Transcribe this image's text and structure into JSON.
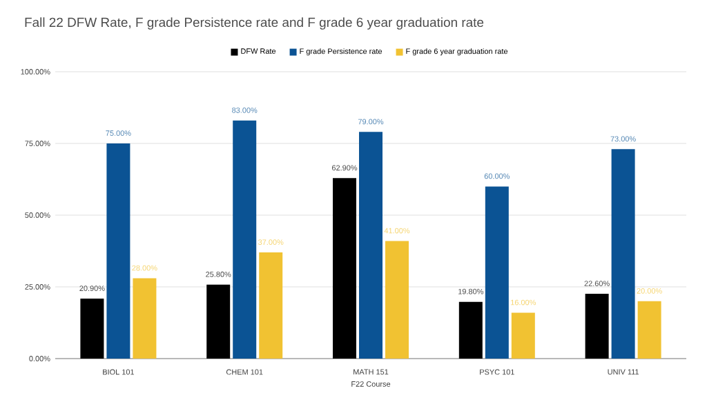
{
  "chart_data": {
    "type": "bar",
    "title": "Fall 22 DFW Rate, F grade Persistence rate and F grade 6 year graduation rate",
    "xlabel": "F22 Course",
    "categories": [
      "BIOL 101",
      "CHEM 101",
      "MATH 151",
      "PSYC 101",
      "UNIV 111"
    ],
    "series": [
      {
        "name": "DFW Rate",
        "color": "#000000",
        "values": [
          20.9,
          25.8,
          62.9,
          19.8,
          22.6
        ],
        "value_labels": [
          "20.90%",
          "25.80%",
          "62.90%",
          "19.80%",
          "22.60%"
        ]
      },
      {
        "name": "F grade Persistence rate",
        "color": "#0b5394",
        "values": [
          75,
          83,
          79,
          60,
          73
        ],
        "value_labels": [
          "75.00%",
          "83.00%",
          "79.00%",
          "60.00%",
          "73.00%"
        ]
      },
      {
        "name": "F grade 6 year graduation rate",
        "color": "#f1c232",
        "values": [
          28,
          37,
          41,
          16,
          20
        ],
        "value_labels": [
          "28.00%",
          "37.00%",
          "41.00%",
          "16.00%",
          "20.00%"
        ]
      }
    ],
    "ylim": [
      0,
      100
    ],
    "yticks": [
      {
        "value": 0,
        "label": "0.00%"
      },
      {
        "value": 25,
        "label": "25.00%"
      },
      {
        "value": 50,
        "label": "50.00%"
      },
      {
        "value": 75,
        "label": "75.00%"
      },
      {
        "value": 100,
        "label": "100.00%"
      }
    ],
    "grid": "y",
    "legend": "top"
  }
}
